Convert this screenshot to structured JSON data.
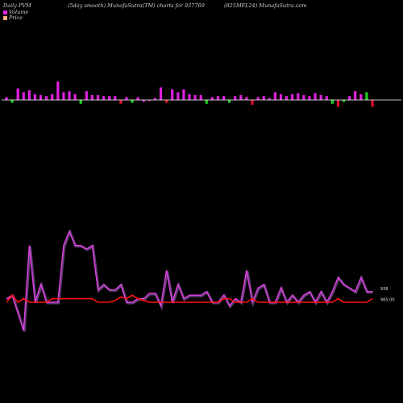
{
  "header": {
    "left": "Daily PVM",
    "mid1": "(5day smooth) MunafaSutra(TM) charts for 937769",
    "mid2": "(825MFL24) MunafaSutra.com"
  },
  "legend": [
    {
      "label": "Volume",
      "color": "#e020e0"
    },
    {
      "label": "Price",
      "color": "#ffb080"
    }
  ],
  "colors": {
    "volume_up": "#e020e0",
    "volume_down_green": "#20d020",
    "volume_down_red": "#e01030",
    "volume_line": "#e040e0",
    "volume_line_shadow": "#a060c0",
    "price_line": "#ff1010",
    "axis": "#ffffff"
  },
  "end_labels": {
    "volume_label": "938",
    "price_label": "985.00"
  },
  "chart_data": [
    {
      "type": "bar",
      "name": "volume-bars",
      "values": [
        3,
        -3,
        12,
        8,
        10,
        6,
        5,
        4,
        6,
        19,
        8,
        9,
        6,
        -4,
        9,
        5,
        5,
        4,
        4,
        4,
        -4,
        3,
        -3,
        3,
        -2,
        -1,
        2,
        13,
        -3,
        11,
        8,
        11,
        6,
        5,
        5,
        -4,
        3,
        4,
        4,
        -3,
        4,
        5,
        3,
        -5,
        3,
        4,
        2,
        8,
        6,
        4,
        6,
        7,
        5,
        4,
        7,
        5,
        4,
        -4,
        -7,
        -2,
        4,
        9,
        6,
        8,
        -7
      ],
      "colors": [
        "m",
        "g",
        "m",
        "m",
        "m",
        "m",
        "m",
        "m",
        "m",
        "m",
        "m",
        "m",
        "m",
        "g",
        "m",
        "m",
        "m",
        "m",
        "m",
        "m",
        "r",
        "m",
        "g",
        "m",
        "m",
        "m",
        "m",
        "m",
        "r",
        "m",
        "m",
        "m",
        "m",
        "m",
        "m",
        "g",
        "m",
        "m",
        "m",
        "g",
        "m",
        "m",
        "m",
        "r",
        "m",
        "m",
        "m",
        "m",
        "m",
        "m",
        "m",
        "m",
        "m",
        "m",
        "m",
        "m",
        "m",
        "g",
        "r",
        "g",
        "m",
        "m",
        "m",
        "g",
        "r"
      ]
    },
    {
      "type": "line",
      "name": "volume-line",
      "values": [
        42,
        44,
        34,
        24,
        72,
        40,
        50,
        40,
        40,
        40,
        72,
        80,
        72,
        72,
        70,
        72,
        47,
        50,
        47,
        47,
        50,
        40,
        40,
        42,
        42,
        45,
        45,
        38,
        58,
        40,
        50,
        42,
        44,
        44,
        44,
        46,
        40,
        40,
        44,
        38,
        42,
        40,
        58,
        40,
        48,
        50,
        40,
        40,
        48,
        40,
        44,
        40,
        44,
        46,
        40,
        46,
        40,
        46,
        54,
        50,
        48,
        46,
        54,
        46,
        46
      ],
      "y_scale": "relative"
    },
    {
      "type": "line",
      "name": "price-line",
      "values": [
        40,
        44,
        40,
        42,
        40,
        40,
        40,
        40,
        42,
        42,
        42,
        42,
        42,
        42,
        42,
        42,
        40,
        40,
        40,
        41,
        43,
        42,
        44,
        42,
        41,
        40,
        40,
        40,
        40,
        40,
        40,
        40,
        40,
        40,
        40,
        40,
        40,
        40,
        42,
        42,
        40,
        40,
        40,
        42,
        40,
        40,
        40,
        40,
        40,
        40,
        40,
        40,
        40,
        40,
        40,
        40,
        40,
        40,
        42,
        40,
        40,
        40,
        40,
        40,
        42
      ],
      "y_scale": "relative"
    }
  ]
}
